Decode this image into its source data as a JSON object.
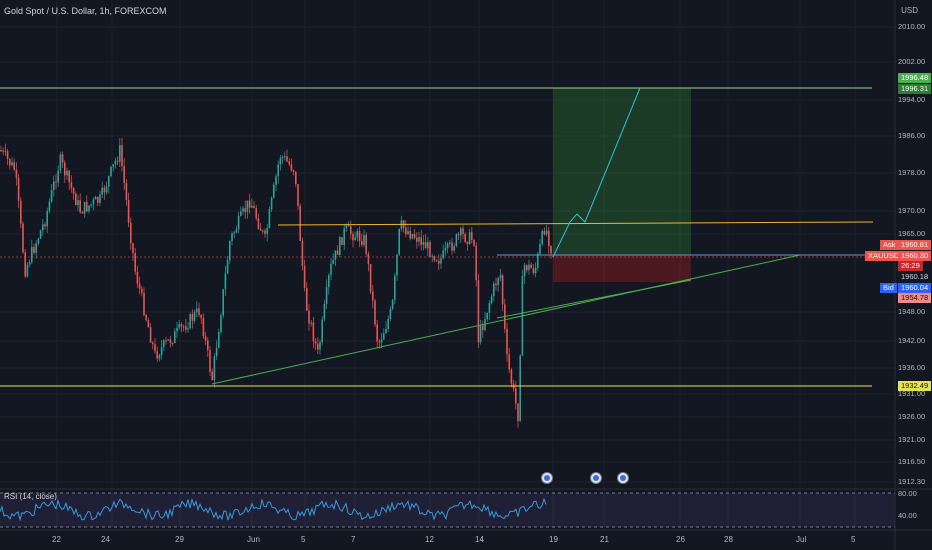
{
  "header": {
    "title": "Gold Spot / U.S. Dollar, 1h, FOREXCOM",
    "currency": "USD"
  },
  "price_axis": {
    "labels": [
      "2010.00",
      "2002.00",
      "1994.00",
      "1986.00",
      "1978.00",
      "1970.00",
      "1965.00",
      "1948.00",
      "1942.00",
      "1936.00",
      "1931.00",
      "1926.00",
      "1921.00",
      "1916.50",
      "1912.30"
    ]
  },
  "badges": {
    "target_top": "1996.48",
    "target_bottom": "1996.31",
    "ask_label": "Ask",
    "ask_value": "1960.81",
    "symbol": "XAUUSD",
    "last": "1960.30",
    "countdown": "26:29",
    "price_plain": "1960.18",
    "bid_label": "Bid",
    "bid_value": "1960.04",
    "stop": "1954.78",
    "support": "1932.49"
  },
  "rsi": {
    "label": "RSI (14, close)",
    "upper": "80.00",
    "lower": "40.00"
  },
  "date_axis": {
    "labels": [
      "22",
      "24",
      "29",
      "Jun",
      "5",
      "7",
      "12",
      "14",
      "19",
      "21",
      "26",
      "28",
      "Jul",
      "5"
    ]
  },
  "colors": {
    "background": "#131722",
    "up": "#26a69a",
    "down": "#ef5350",
    "resistance": "#f0b429",
    "support": "#e7e34d",
    "target_line": "#9ad08b",
    "trend": "#4caf50",
    "entry": "#5b9bd5",
    "projection": "#26c6da"
  },
  "icons": [
    "calendar-event-icon",
    "calendar-event-icon",
    "calendar-event-icon"
  ]
}
